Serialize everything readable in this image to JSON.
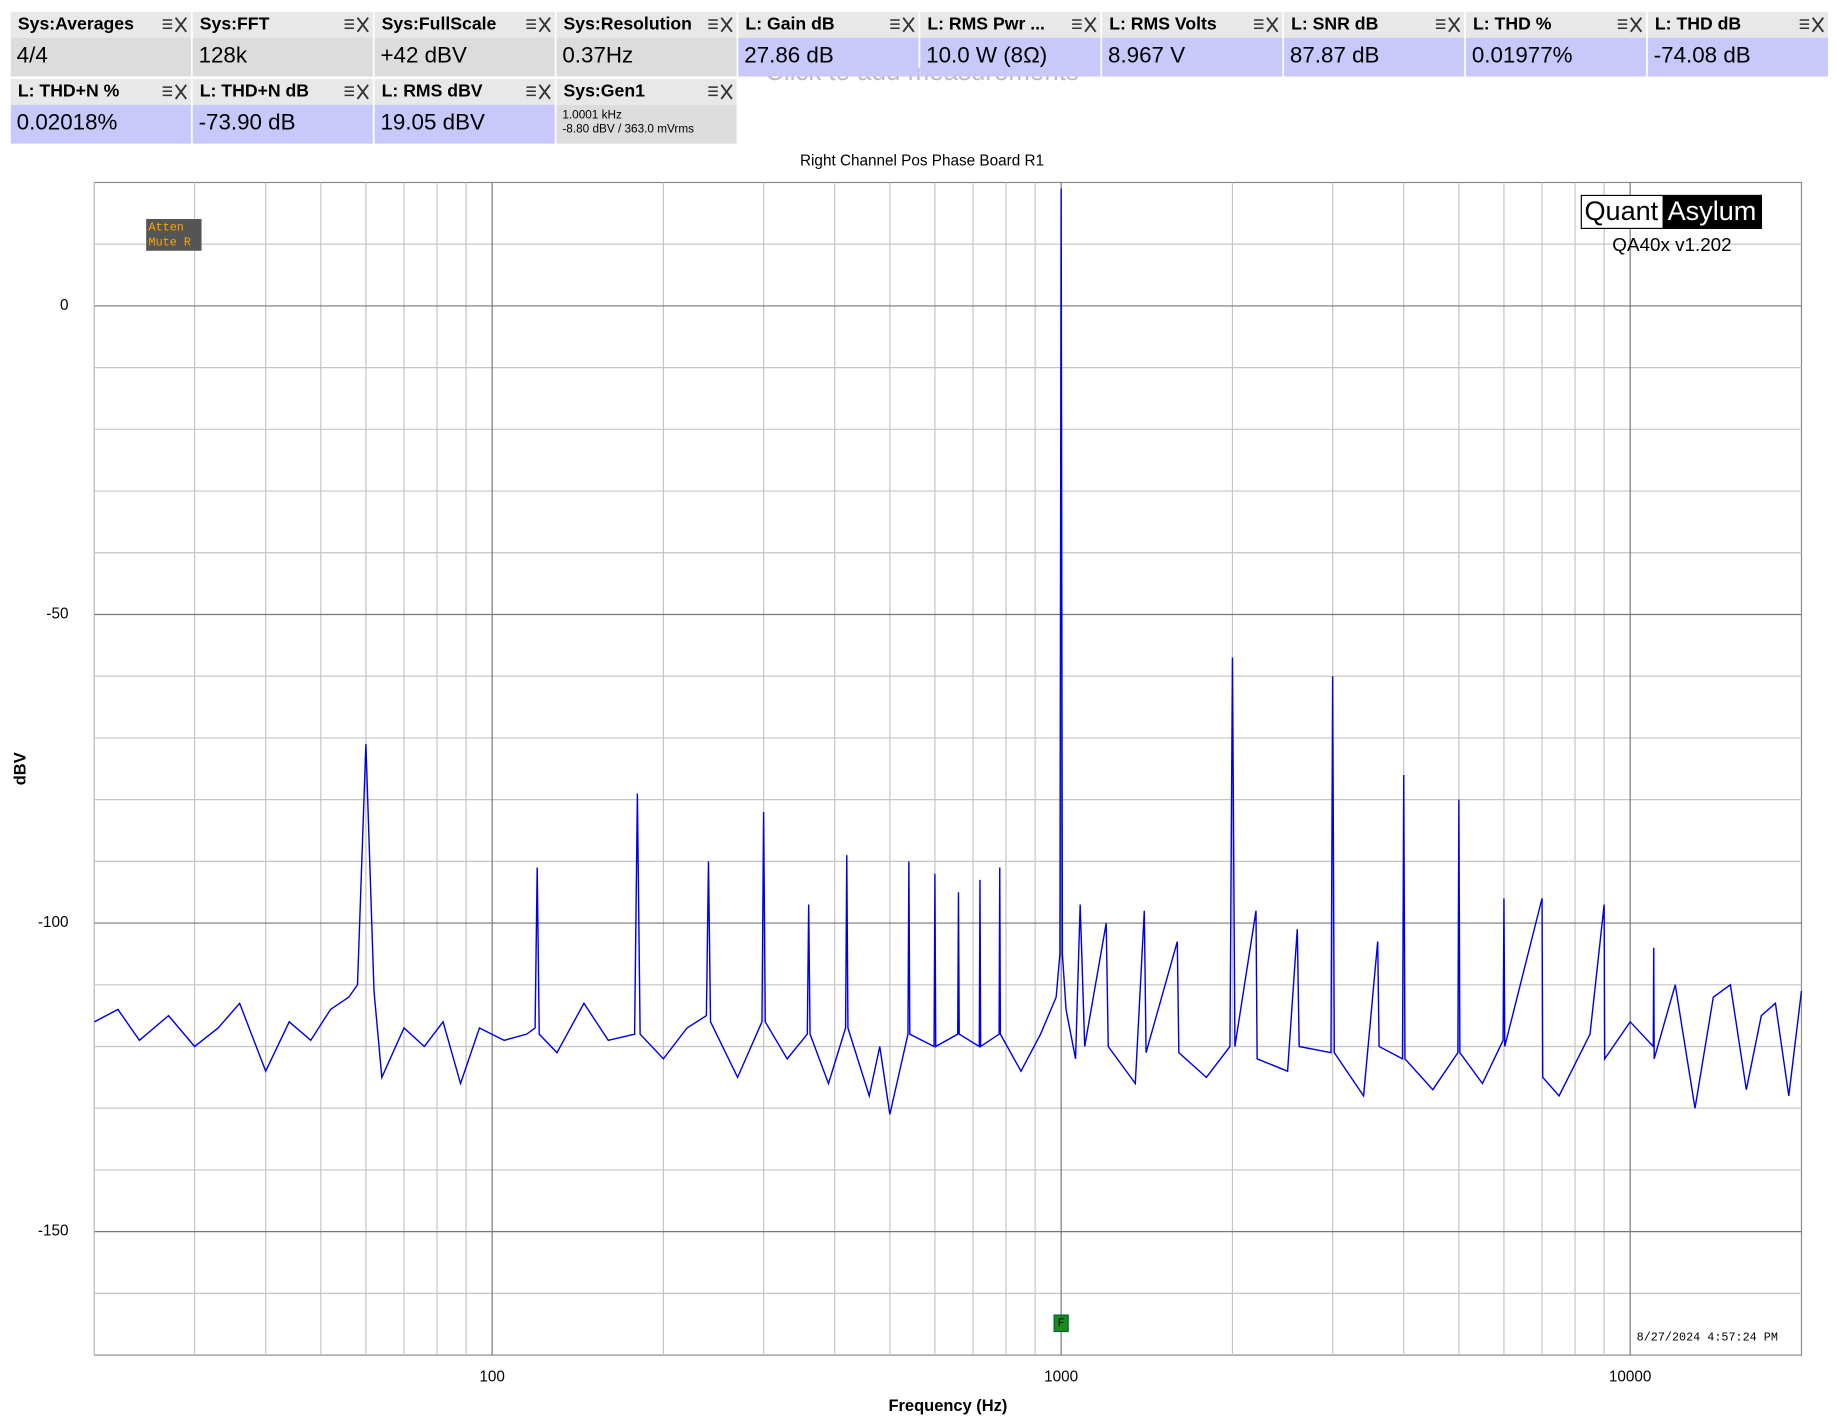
{
  "tiles": [
    {
      "label": "Sys:Averages",
      "value": "4/4",
      "kind": "sys"
    },
    {
      "label": "Sys:FFT",
      "value": "128k",
      "kind": "sys"
    },
    {
      "label": "Sys:FullScale",
      "value": "+42 dBV",
      "kind": "sys"
    },
    {
      "label": "Sys:Resolution",
      "value": "0.37Hz",
      "kind": "sys"
    },
    {
      "label": "L: Gain dB",
      "value": "27.86 dB",
      "kind": "ch"
    },
    {
      "label": "L: RMS Pwr ...",
      "value": "10.0 W (8Ω)",
      "kind": "ch"
    },
    {
      "label": "L: RMS Volts",
      "value": "8.967 V",
      "kind": "ch"
    },
    {
      "label": "L: SNR dB",
      "value": "87.87 dB",
      "kind": "ch"
    },
    {
      "label": "L: THD %",
      "value": "0.01977%",
      "kind": "ch"
    },
    {
      "label": "L: THD dB",
      "value": "-74.08 dB",
      "kind": "ch"
    },
    {
      "label": "L: THD+N %",
      "value": "0.02018%",
      "kind": "ch"
    },
    {
      "label": "L: THD+N dB",
      "value": "-73.90 dB",
      "kind": "ch"
    },
    {
      "label": "L: RMS dBV",
      "value": "19.05 dBV",
      "kind": "ch"
    },
    {
      "label": "Sys:Gen1",
      "lines": [
        "1.0001 kHz",
        "-8.80 dBV  / 363.0 mVrms"
      ],
      "kind": "sys"
    }
  ],
  "hint": "Click to add measurements",
  "badges": [
    "Atten",
    "Mute R"
  ],
  "logo": {
    "left": "Quant",
    "right": "Asylum",
    "version": "QA40x v1.202"
  },
  "timestamp": "8/27/2024 4:57:24 PM",
  "marker": "F",
  "chart_data": {
    "type": "line",
    "title": "Right Channel Pos Phase Board R1",
    "xlabel": "Frequency (Hz)",
    "ylabel": "dBV",
    "xscale": "log",
    "xlim": [
      20,
      20000
    ],
    "ylim": [
      -170,
      20
    ],
    "xticks": [
      100,
      1000,
      10000
    ],
    "yticks": [
      -150,
      -100,
      -50,
      0
    ],
    "xgrid": [
      20,
      30,
      40,
      50,
      60,
      70,
      80,
      90,
      200,
      300,
      400,
      500,
      600,
      700,
      800,
      900,
      2000,
      3000,
      4000,
      5000,
      6000,
      7000,
      8000,
      9000
    ],
    "ygrid": [
      -160,
      -140,
      -130,
      -120,
      -110,
      -90,
      -80,
      -70,
      -60,
      -40,
      -30,
      -20,
      -10,
      10
    ],
    "marker_x": 1000,
    "x": [
      20,
      22,
      24,
      27,
      30,
      33,
      36,
      40,
      44,
      48,
      52,
      56,
      58,
      60,
      62,
      64,
      70,
      76,
      82,
      88,
      95,
      105,
      115,
      119,
      120,
      121,
      130,
      145,
      160,
      178,
      180,
      182,
      200,
      220,
      238,
      240,
      242,
      270,
      298,
      300,
      302,
      330,
      358,
      360,
      362,
      390,
      418,
      420,
      422,
      460,
      480,
      500,
      538,
      540,
      542,
      598,
      600,
      602,
      658,
      660,
      662,
      718,
      720,
      722,
      778,
      780,
      782,
      850,
      920,
      980,
      995,
      1000,
      1005,
      1020,
      1060,
      1080,
      1100,
      1200,
      1210,
      1350,
      1400,
      1410,
      1600,
      1610,
      1800,
      1980,
      2000,
      2020,
      2200,
      2210,
      2500,
      2600,
      2620,
      2980,
      3000,
      3020,
      3400,
      3600,
      3620,
      3980,
      4000,
      4020,
      4500,
      4980,
      5000,
      5020,
      5500,
      5980,
      6000,
      6020,
      7000,
      7020,
      7500,
      8500,
      9000,
      9020,
      10000,
      10980,
      11000,
      11020,
      12000,
      13000,
      14000,
      15000,
      16000,
      17000,
      18000,
      19000,
      20000
    ],
    "series": [
      {
        "color": "#0000e6",
        "values": [
          -116,
          -114,
          -119,
          -115,
          -120,
          -117,
          -113,
          -124,
          -116,
          -119,
          -114,
          -112,
          -110,
          -71,
          -111,
          -125,
          -117,
          -120,
          -116,
          -126,
          -117,
          -119,
          -118,
          -117,
          -91,
          -118,
          -121,
          -113,
          -119,
          -118,
          -79,
          -118,
          -122,
          -117,
          -115,
          -90,
          -116,
          -125,
          -116,
          -82,
          -116,
          -122,
          -118,
          -97,
          -118,
          -126,
          -117,
          -89,
          -117,
          -128,
          -120,
          -131,
          -118,
          -90,
          -118,
          -120,
          -92,
          -120,
          -118,
          -95,
          -118,
          -120,
          -93,
          -120,
          -118,
          -91,
          -118,
          -124,
          -118,
          -112,
          -105,
          19,
          -105,
          -114,
          -122,
          -97,
          -120,
          -100,
          -120,
          -126,
          -98,
          -121,
          -103,
          -121,
          -125,
          -120,
          -57,
          -120,
          -98,
          -122,
          -124,
          -101,
          -120,
          -121,
          -60,
          -121,
          -128,
          -103,
          -120,
          -122,
          -76,
          -122,
          -127,
          -121,
          -80,
          -121,
          -126,
          -119,
          -96,
          -120,
          -96,
          -125,
          -128,
          -118,
          -97,
          -122,
          -116,
          -120,
          -104,
          -122,
          -110,
          -130,
          -112,
          -110,
          -127,
          -115,
          -113,
          -128,
          -111
        ]
      }
    ]
  }
}
